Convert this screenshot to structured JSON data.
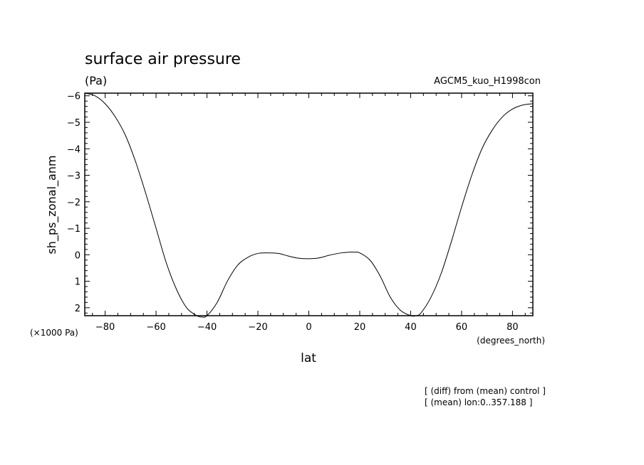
{
  "chart_data": {
    "type": "line",
    "title": "surface air pressure",
    "units_label": "(Pa)",
    "experiment": "AGCM5_kuo_H1998con",
    "ylabel": "sh_ps_zonal_anm",
    "xlabel": "lat",
    "x_units": "(degrees_north)",
    "y_multiplier": "(×1000 Pa)",
    "xlim": [
      -88,
      88
    ],
    "ylim": [
      2.3,
      -6.1
    ],
    "y_inverted": true,
    "x_ticks": [
      -80,
      -60,
      -40,
      -20,
      0,
      20,
      40,
      60,
      80
    ],
    "y_ticks": [
      -6,
      -5,
      -4,
      -3,
      -2,
      -1,
      0,
      1,
      2
    ],
    "notes": [
      "[ (diff) from (mean) control ]",
      "[ (mean) lon:0..357.188 ]"
    ],
    "grid": false,
    "series": [
      {
        "x": [
          -88,
          -84,
          -80,
          -76,
          -72,
          -68,
          -64,
          -60,
          -56,
          -52,
          -48,
          -44,
          -42,
          -40,
          -36,
          -32,
          -28,
          -24,
          -20,
          -16,
          -12,
          -8,
          -4,
          0,
          4,
          8,
          12,
          16,
          18,
          20,
          24,
          28,
          32,
          36,
          40,
          42,
          44,
          48,
          52,
          56,
          60,
          64,
          68,
          72,
          76,
          80,
          84,
          88
        ],
        "values": [
          -6.1,
          -6.0,
          -5.7,
          -5.2,
          -4.5,
          -3.5,
          -2.3,
          -1.0,
          0.3,
          1.3,
          2.0,
          2.3,
          2.35,
          2.3,
          1.8,
          1.0,
          0.4,
          0.1,
          -0.05,
          -0.07,
          -0.05,
          0.05,
          0.13,
          0.15,
          0.12,
          0.02,
          -0.06,
          -0.1,
          -0.1,
          -0.07,
          0.2,
          0.8,
          1.6,
          2.1,
          2.3,
          2.3,
          2.2,
          1.6,
          0.7,
          -0.5,
          -1.8,
          -3.0,
          -4.0,
          -4.7,
          -5.2,
          -5.5,
          -5.65,
          -5.7
        ]
      }
    ]
  }
}
